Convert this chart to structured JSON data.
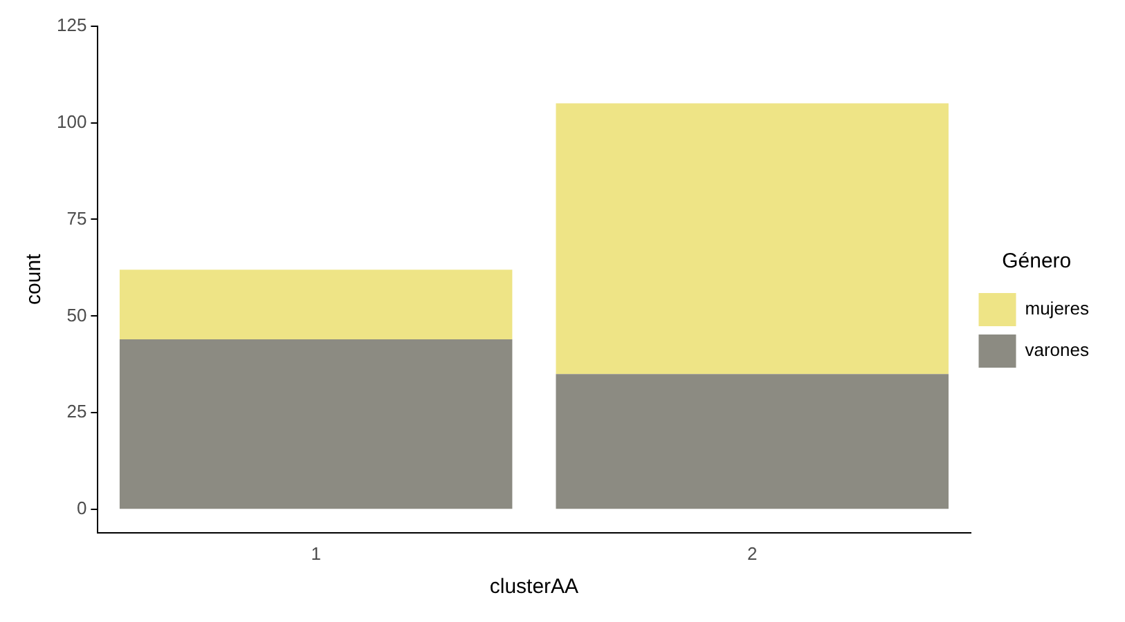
{
  "chart_data": {
    "type": "bar",
    "xlabel": "clusterAA",
    "ylabel": "count",
    "legend_title": "Género",
    "categories": [
      "1",
      "2"
    ],
    "stacked": true,
    "ylim": [
      -6,
      125
    ],
    "yticks": [
      0,
      25,
      50,
      75,
      100,
      125
    ],
    "grid": false,
    "legend": "right",
    "series": [
      {
        "name": "varones",
        "color": "#8c8b82",
        "values": [
          44,
          35
        ]
      },
      {
        "name": "mujeres",
        "color": "#eee486",
        "values": [
          18,
          70
        ]
      }
    ]
  }
}
